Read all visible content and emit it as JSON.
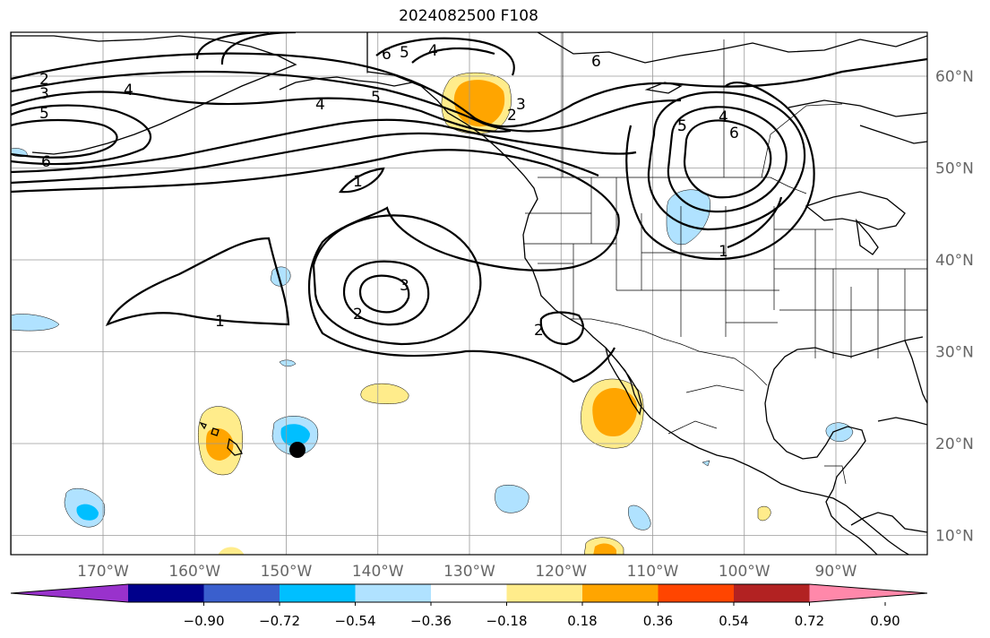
{
  "title": "2024082500 F108",
  "lon_labels": [
    "170°W",
    "160°W",
    "150°W",
    "140°W",
    "130°W",
    "120°W",
    "110°W",
    "100°W",
    "90°W"
  ],
  "lat_labels": [
    "60°N",
    "50°N",
    "40°N",
    "30°N",
    "20°N",
    "10°N"
  ],
  "colorbar": {
    "colors": [
      "#9932cc",
      "#00008b",
      "#3a5fcd",
      "#00bfff",
      "#b0e2ff",
      "#ffffff",
      "#ffec8b",
      "#ffa500",
      "#ff4500",
      "#b22222",
      "#ff88aa"
    ],
    "tick_labels": [
      "−0.90",
      "−0.72",
      "−0.54",
      "−0.36",
      "−0.18",
      "0.18",
      "0.36",
      "0.54",
      "0.72",
      "0.90"
    ]
  },
  "contour_labels": [
    "2",
    "3",
    "4",
    "5",
    "6",
    "4",
    "5",
    "6",
    "5",
    "4",
    "6",
    "5",
    "3",
    "2",
    "4",
    "5",
    "6",
    "1",
    "1",
    "1",
    "3",
    "2",
    "2"
  ],
  "marker": {
    "lon": -148.5,
    "lat": 19.3
  }
}
